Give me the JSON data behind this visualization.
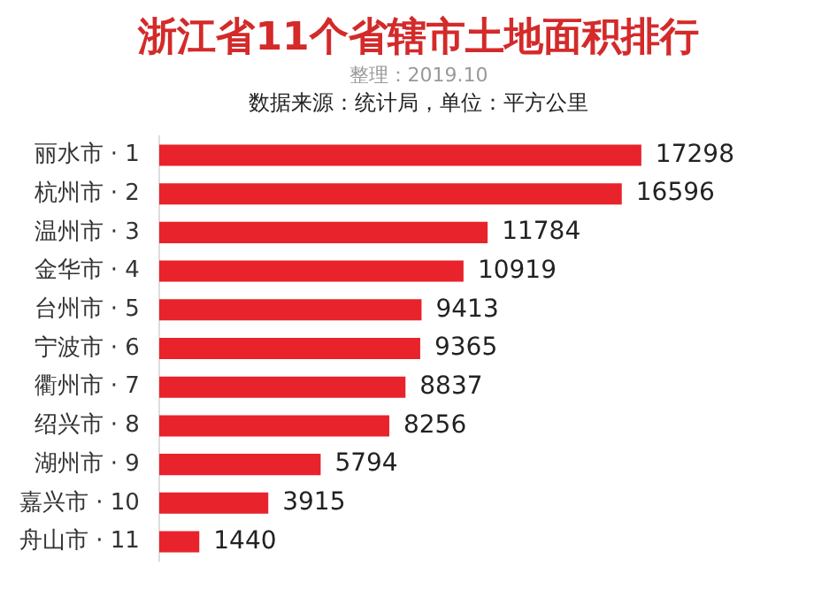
{
  "chart_data": {
    "type": "bar",
    "orientation": "horizontal",
    "title": "浙江省11个省辖市土地面积排行",
    "subtitle": "整理：2019.10",
    "annotations": [
      "数据来源：统计局，单位：平方公里"
    ],
    "categories": [
      "丽水市 · 1",
      "杭州市 · 2",
      "温州市 · 3",
      "金华市 · 4",
      "台州市 · 5",
      "宁波市 · 6",
      "衢州市 · 7",
      "绍兴市 · 8",
      "湖州市 · 9",
      "嘉兴市 · 10",
      "舟山市 · 11"
    ],
    "values": [
      17298,
      16596,
      11784,
      10919,
      9413,
      9365,
      8837,
      8256,
      5794,
      3915,
      1440
    ],
    "color": "#e8232b",
    "data_labels": true
  }
}
